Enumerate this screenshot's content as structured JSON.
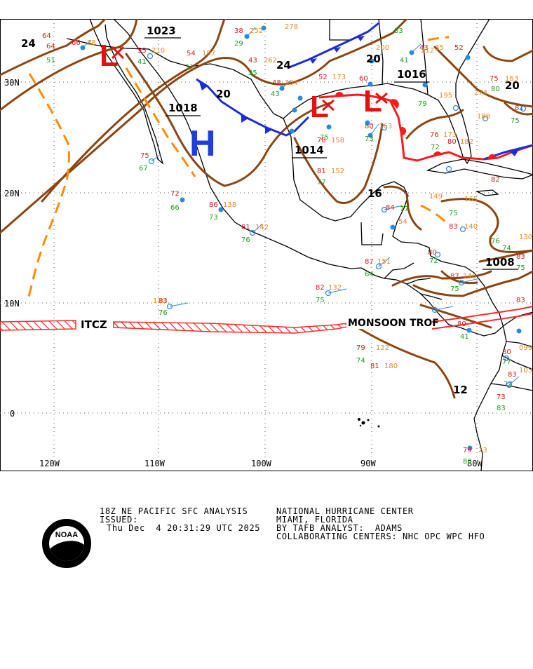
{
  "map": {
    "lat_labels": [
      "30N",
      "20N",
      "10N",
      "0"
    ],
    "lon_labels": [
      "120W",
      "110W",
      "100W",
      "90W",
      "80W"
    ],
    "pressure_centers": [
      {
        "type": "H",
        "label": "H",
        "color": "#1f3fd8"
      },
      {
        "type": "L",
        "label": "L",
        "color": "#e21212"
      },
      {
        "type": "L",
        "label": "L",
        "color": "#e21212"
      },
      {
        "type": "L",
        "label": "L",
        "color": "#e21212"
      }
    ],
    "isobar_labels": [
      "1023",
      "1018",
      "1014",
      "1016",
      "1008",
      "24",
      "24",
      "20",
      "20",
      "20",
      "16",
      "12"
    ],
    "features": {
      "itcz": "ITCZ",
      "monsoon_trough": "MONSOON TROF"
    },
    "colors": {
      "isobar": "#8b4513",
      "trough": "#ff8c00",
      "cold_front": "#1c2ed6",
      "warm_front": "#ff1a1a",
      "itcz": "#ff2a2a",
      "coast": "#000000",
      "temperature": "#d81e1e",
      "dewpoint": "#1e9e1e",
      "pressure_obs": "#e08a2a",
      "station": "#2a8ae0"
    }
  },
  "caption": {
    "product": "18Z NE PACIFIC SFC ANALYSIS",
    "issued_label": "ISSUED:",
    "issued_time": "Thu Dec  4 20:31:29 UTC 2025",
    "center": "NATIONAL HURRICANE CENTER",
    "location": "MIAMI, FLORIDA",
    "analyst": "BY TAFB ANALYST:  ADAMS",
    "collab": "COLLABORATING CENTERS: NHC OPC WPC HFO",
    "logo_text": "NOAA"
  }
}
